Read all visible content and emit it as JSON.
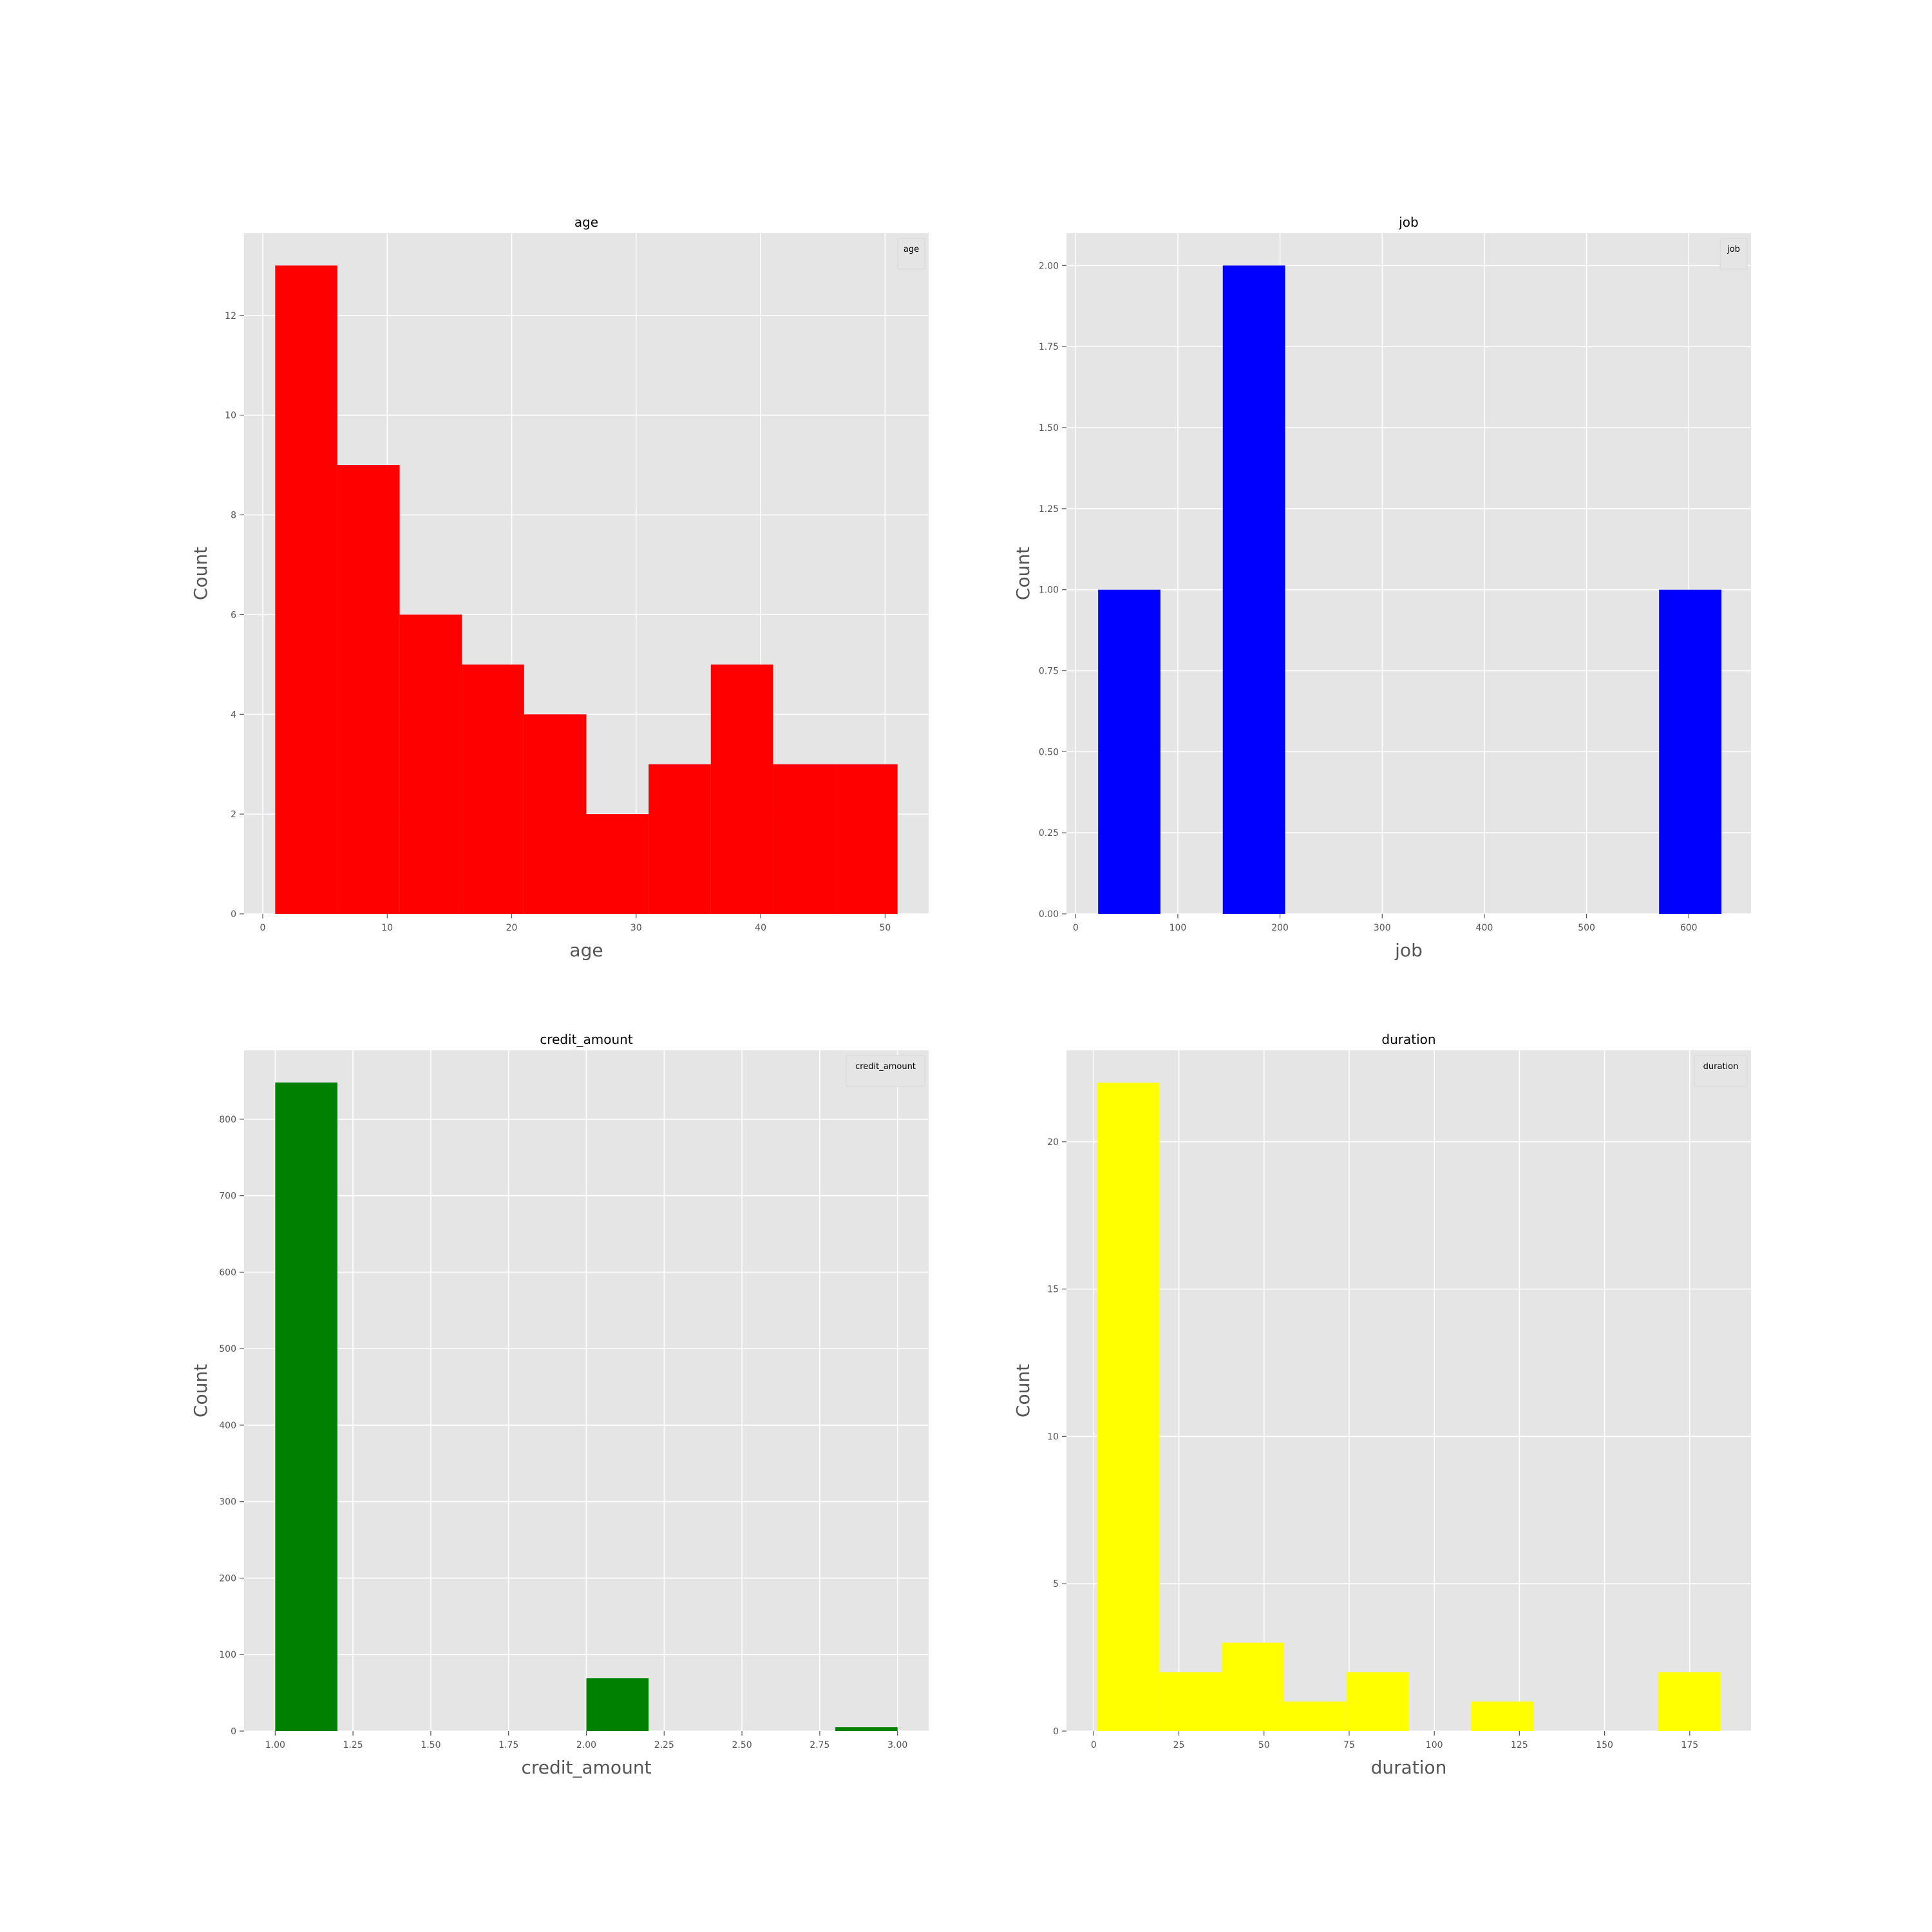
{
  "chart_data": [
    {
      "type": "bar",
      "title": "age",
      "xlabel": "age",
      "ylabel": "Count",
      "legend": "age",
      "legend_position": "top-right",
      "color": "#ff0000",
      "grid": true,
      "xlim": [
        -1.5,
        53.5
      ],
      "ylim": [
        0,
        13.65
      ],
      "xticks": [
        0,
        10,
        20,
        30,
        40,
        50
      ],
      "yticks": [
        0,
        2,
        4,
        6,
        8,
        10,
        12
      ],
      "ytick_decimals": 0,
      "bins": [
        {
          "x0": 1,
          "x1": 6,
          "count": 13
        },
        {
          "x0": 6,
          "x1": 11,
          "count": 9
        },
        {
          "x0": 11,
          "x1": 16,
          "count": 6
        },
        {
          "x0": 16,
          "x1": 21,
          "count": 5
        },
        {
          "x0": 21,
          "x1": 26,
          "count": 4
        },
        {
          "x0": 26,
          "x1": 31,
          "count": 2
        },
        {
          "x0": 31,
          "x1": 36,
          "count": 3
        },
        {
          "x0": 36,
          "x1": 41,
          "count": 5
        },
        {
          "x0": 41,
          "x1": 46,
          "count": 3
        },
        {
          "x0": 46,
          "x1": 51,
          "count": 3
        }
      ]
    },
    {
      "type": "bar",
      "title": "job",
      "xlabel": "job",
      "ylabel": "Count",
      "legend": "job",
      "legend_position": "top-right",
      "color": "#0000ff",
      "grid": true,
      "xlim": [
        -9,
        661
      ],
      "ylim": [
        0,
        2.1
      ],
      "xticks": [
        0,
        100,
        200,
        300,
        400,
        500,
        600
      ],
      "yticks": [
        0,
        0.25,
        0.5,
        0.75,
        1.0,
        1.25,
        1.5,
        1.75,
        2.0
      ],
      "ytick_decimals": 2,
      "bins": [
        {
          "x0": 22,
          "x1": 83,
          "count": 1
        },
        {
          "x0": 144,
          "x1": 205,
          "count": 2
        },
        {
          "x0": 571,
          "x1": 632,
          "count": 1
        }
      ]
    },
    {
      "type": "bar",
      "title": "credit_amount",
      "xlabel": "credit_amount",
      "ylabel": "Count",
      "legend": "credit_amount",
      "legend_position": "top-right",
      "color": "#008000",
      "grid": true,
      "xlim": [
        0.9,
        3.1
      ],
      "ylim": [
        0,
        890
      ],
      "xticks": [
        1.0,
        1.25,
        1.5,
        1.75,
        2.0,
        2.25,
        2.5,
        2.75,
        3.0
      ],
      "yticks": [
        0,
        100,
        200,
        300,
        400,
        500,
        600,
        700,
        800
      ],
      "xtick_decimals": 2,
      "ytick_decimals": 0,
      "bins": [
        {
          "x0": 1.0,
          "x1": 1.2,
          "count": 848
        },
        {
          "x0": 2.0,
          "x1": 2.2,
          "count": 69
        },
        {
          "x0": 2.8,
          "x1": 3.0,
          "count": 5
        }
      ]
    },
    {
      "type": "bar",
      "title": "duration",
      "xlabel": "duration",
      "ylabel": "Count",
      "legend": "duration",
      "legend_position": "top-right",
      "color": "#ffff00",
      "grid": true,
      "xlim": [
        -8,
        193
      ],
      "ylim": [
        0,
        23.1
      ],
      "xticks": [
        0,
        25,
        50,
        75,
        100,
        125,
        150,
        175
      ],
      "yticks": [
        0,
        5,
        10,
        15,
        20
      ],
      "ytick_decimals": 0,
      "bins": [
        {
          "x0": 1,
          "x1": 19.3,
          "count": 22
        },
        {
          "x0": 19.3,
          "x1": 37.6,
          "count": 2
        },
        {
          "x0": 37.6,
          "x1": 55.9,
          "count": 3
        },
        {
          "x0": 55.9,
          "x1": 74.2,
          "count": 1
        },
        {
          "x0": 74.2,
          "x1": 92.5,
          "count": 2
        },
        {
          "x0": 92.5,
          "x1": 110.8,
          "count": 0
        },
        {
          "x0": 110.8,
          "x1": 129.1,
          "count": 1
        },
        {
          "x0": 129.1,
          "x1": 147.4,
          "count": 0
        },
        {
          "x0": 147.4,
          "x1": 165.7,
          "count": 0
        },
        {
          "x0": 165.7,
          "x1": 184,
          "count": 2
        }
      ]
    }
  ]
}
